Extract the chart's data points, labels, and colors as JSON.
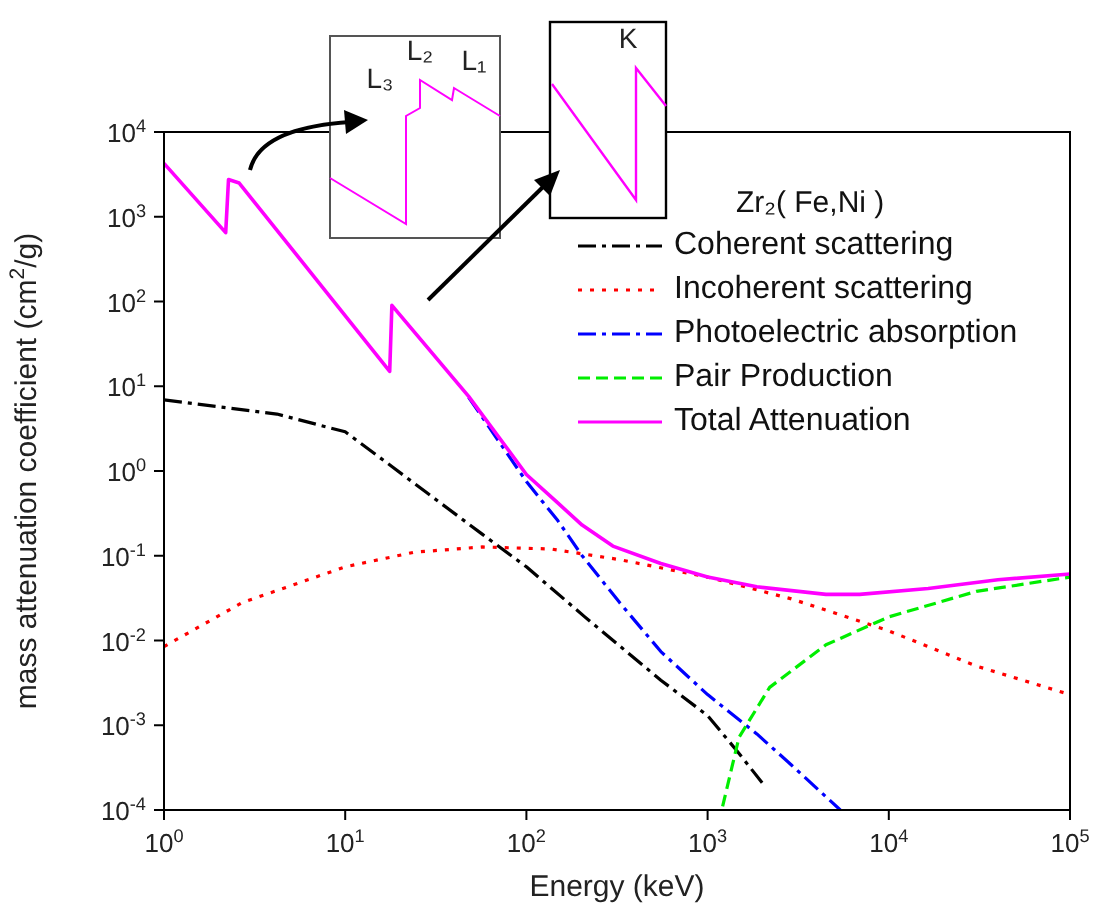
{
  "chart_data": {
    "type": "line",
    "xlabel": "Energy (keV)",
    "ylabel": "mass attenuation coefficient (cm$^{2}$/g)",
    "legend_title": "Zr₂( Fe,Ni )",
    "legend": "top right",
    "log": "xy",
    "grid": false,
    "marker": "none",
    "xlim": [
      1,
      100000
    ],
    "xticks": [
      {
        "value": 1,
        "label": "10$^{0}$"
      },
      {
        "value": 10,
        "label": "10$^{1}$"
      },
      {
        "value": 100,
        "label": "10$^{2}$"
      },
      {
        "value": 1000,
        "label": "10$^{3}$"
      },
      {
        "value": 10000,
        "label": "10$^{4}$"
      },
      {
        "value": 100000,
        "label": "10$^{5}$"
      }
    ],
    "ylim": [
      0.0001,
      10000
    ],
    "yticks": [
      {
        "value": 0.0001,
        "label": "10$^{-4}$"
      },
      {
        "value": 0.001,
        "label": "10$^{-3}$"
      },
      {
        "value": 0.01,
        "label": "10$^{-2}$"
      },
      {
        "value": 0.1,
        "label": "10$^{-1}$"
      },
      {
        "value": 1,
        "label": "10$^{0}$"
      },
      {
        "value": 10,
        "label": "10$^{1}$"
      },
      {
        "value": 100,
        "label": "10$^{2}$"
      },
      {
        "value": 1000,
        "label": "10$^{3}$"
      },
      {
        "value": 10000,
        "label": "10$^{4}$"
      }
    ],
    "series": [
      {
        "name": "Coherent scattering",
        "color": "#000000",
        "line_style": "dashdot",
        "x": [
          1,
          4.2,
          10,
          18.4,
          28,
          57,
          100,
          210,
          552,
          1000,
          1450,
          2000
        ],
        "values": [
          6.9,
          4.7,
          2.9,
          1.1,
          0.56,
          0.18,
          0.074,
          0.019,
          0.0034,
          0.0013,
          0.0005,
          0.00021
        ]
      },
      {
        "name": "Incoherent scattering",
        "color": "#ff0000",
        "line_style": "dotted",
        "x": [
          1,
          2.7,
          10,
          24,
          57,
          137,
          327,
          1000,
          2900,
          10000,
          30400,
          100000
        ],
        "values": [
          0.0085,
          0.028,
          0.074,
          0.11,
          0.127,
          0.12,
          0.09,
          0.056,
          0.031,
          0.013,
          0.005,
          0.0023
        ]
      },
      {
        "name": "Photoelectric absorption",
        "color": "#0000ff",
        "line_style": "dashdot",
        "x": [
          48,
          100,
          149,
          203,
          327,
          552,
          1000,
          1870,
          2900,
          5400
        ],
        "values": [
          7.4,
          0.75,
          0.26,
          0.1,
          0.028,
          0.0074,
          0.0023,
          0.00079,
          0.00034,
          0.0001
        ]
      },
      {
        "name": "Pair Production",
        "color": "#00ee00",
        "line_style": "dashed",
        "x": [
          1210,
          1490,
          2200,
          4500,
          10000,
          30400,
          100000
        ],
        "values": [
          0.00011,
          0.00072,
          0.0028,
          0.0089,
          0.019,
          0.038,
          0.056
        ]
      },
      {
        "name": "Total Attenuation",
        "color": "#ff00ff",
        "line_style": "solid",
        "x": [
          1,
          2.19,
          2.27,
          2.6,
          17.6,
          18.1,
          48,
          100,
          149,
          203,
          300,
          552,
          1000,
          1870,
          4500,
          6900,
          16500,
          40000,
          100000
        ],
        "values": [
          4260,
          650,
          2750,
          2500,
          15,
          90,
          7.6,
          0.91,
          0.42,
          0.23,
          0.13,
          0.081,
          0.056,
          0.043,
          0.035,
          0.035,
          0.041,
          0.052,
          0.061
        ]
      }
    ],
    "annotations": [
      "L₃",
      "L₂",
      "L₁",
      "K"
    ]
  }
}
